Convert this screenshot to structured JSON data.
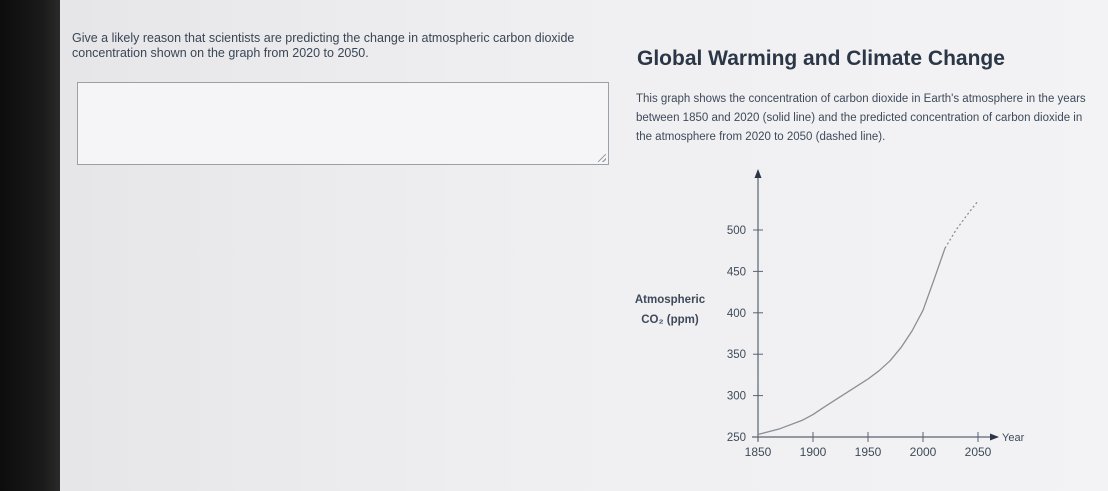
{
  "question": {
    "text": "Give a likely reason that scientists are predicting the change in atmospheric carbon dioxide concentration shown on the graph from 2020 to 2050."
  },
  "answer_box": {
    "value": ""
  },
  "panel": {
    "title": "Global Warming and Climate Change",
    "description_lines": [
      "This graph shows the concentration of carbon dioxide in Earth's atmosphere in the years",
      "between 1850 and 2020 (solid line) and the predicted concentration of carbon dioxide in",
      "the atmosphere from 2020 to 2050 (dashed line)."
    ]
  },
  "chart_data": {
    "type": "line",
    "ylabel_lines": [
      "Atmospheric",
      "CO₂ (ppm)"
    ],
    "xlabel": "Year",
    "x_ticks": [
      1850,
      1900,
      1950,
      2000,
      2050
    ],
    "y_ticks": [
      250,
      300,
      350,
      400,
      450,
      500
    ],
    "xlim": [
      1850,
      2050
    ],
    "ylim": [
      250,
      500
    ],
    "series": [
      {
        "style": "solid",
        "x": [
          1850,
          1870,
          1890,
          1900,
          1910,
          1930,
          1950,
          1960,
          1970,
          1980,
          1990,
          2000,
          2010,
          2020
        ],
        "y": [
          253,
          260,
          270,
          277,
          286,
          303,
          320,
          330,
          342,
          358,
          378,
          403,
          440,
          478
        ]
      },
      {
        "style": "dashed",
        "x": [
          2020,
          2030,
          2040,
          2050
        ],
        "y": [
          478,
          500,
          518,
          535
        ]
      }
    ],
    "grid": false,
    "line_color": "#8a8f96"
  }
}
